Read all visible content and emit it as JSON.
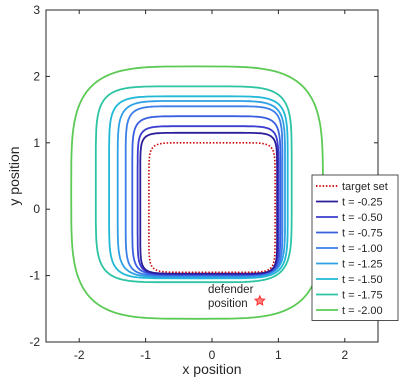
{
  "chart_data": {
    "type": "line",
    "xlabel": "x position",
    "ylabel": "y position",
    "xlim": [
      -2.5,
      2.5
    ],
    "ylim": [
      -2,
      3
    ],
    "xticks": [
      -2,
      -1,
      0,
      1,
      2
    ],
    "yticks": [
      -2,
      -1,
      0,
      1,
      2,
      3
    ],
    "grid": false,
    "legend_position": "bottom-right",
    "annotation": {
      "lines": [
        "defender",
        "position"
      ],
      "x": 0.72,
      "y": -1.38,
      "marker": "star",
      "color": "#ff3030"
    },
    "series": [
      {
        "name": "target set",
        "color": "#cc0000",
        "style": "dotted",
        "shape": {
          "x0": -0.95,
          "x1": 0.95,
          "y0": -0.95,
          "y1": 1.0,
          "exp": 10
        }
      },
      {
        "name": "t = -0.25",
        "color": "#2b1e9a",
        "style": "solid",
        "shape": {
          "x0": -1.08,
          "x1": 0.98,
          "y0": -0.97,
          "y1": 1.15,
          "exp": 10
        }
      },
      {
        "name": "t = -0.50",
        "color": "#3b3bcf",
        "style": "solid",
        "shape": {
          "x0": -1.12,
          "x1": 1.0,
          "y0": -0.98,
          "y1": 1.25,
          "exp": 9
        }
      },
      {
        "name": "t = -0.75",
        "color": "#3a5fe0",
        "style": "solid",
        "shape": {
          "x0": -1.2,
          "x1": 1.03,
          "y0": -0.99,
          "y1": 1.4,
          "exp": 8
        }
      },
      {
        "name": "t = -1.00",
        "color": "#3a7ee8",
        "style": "solid",
        "shape": {
          "x0": -1.3,
          "x1": 1.06,
          "y0": -1.0,
          "y1": 1.55,
          "exp": 8
        }
      },
      {
        "name": "t = -1.25",
        "color": "#2fa0e6",
        "style": "solid",
        "shape": {
          "x0": -1.42,
          "x1": 1.1,
          "y0": -1.02,
          "y1": 1.63,
          "exp": 7
        }
      },
      {
        "name": "t = -1.50",
        "color": "#20b8d6",
        "style": "solid",
        "shape": {
          "x0": -1.55,
          "x1": 1.14,
          "y0": -1.04,
          "y1": 1.7,
          "exp": 7
        }
      },
      {
        "name": "t = -1.75",
        "color": "#2cc4a4",
        "style": "solid",
        "shape": {
          "x0": -1.75,
          "x1": 1.2,
          "y0": -1.1,
          "y1": 1.85,
          "exp": 6
        }
      },
      {
        "name": "t = -2.00",
        "color": "#5cca55",
        "style": "solid",
        "shape": {
          "x0": -2.12,
          "x1": 1.67,
          "y0": -1.65,
          "y1": 2.15,
          "exp": 4
        }
      }
    ]
  }
}
